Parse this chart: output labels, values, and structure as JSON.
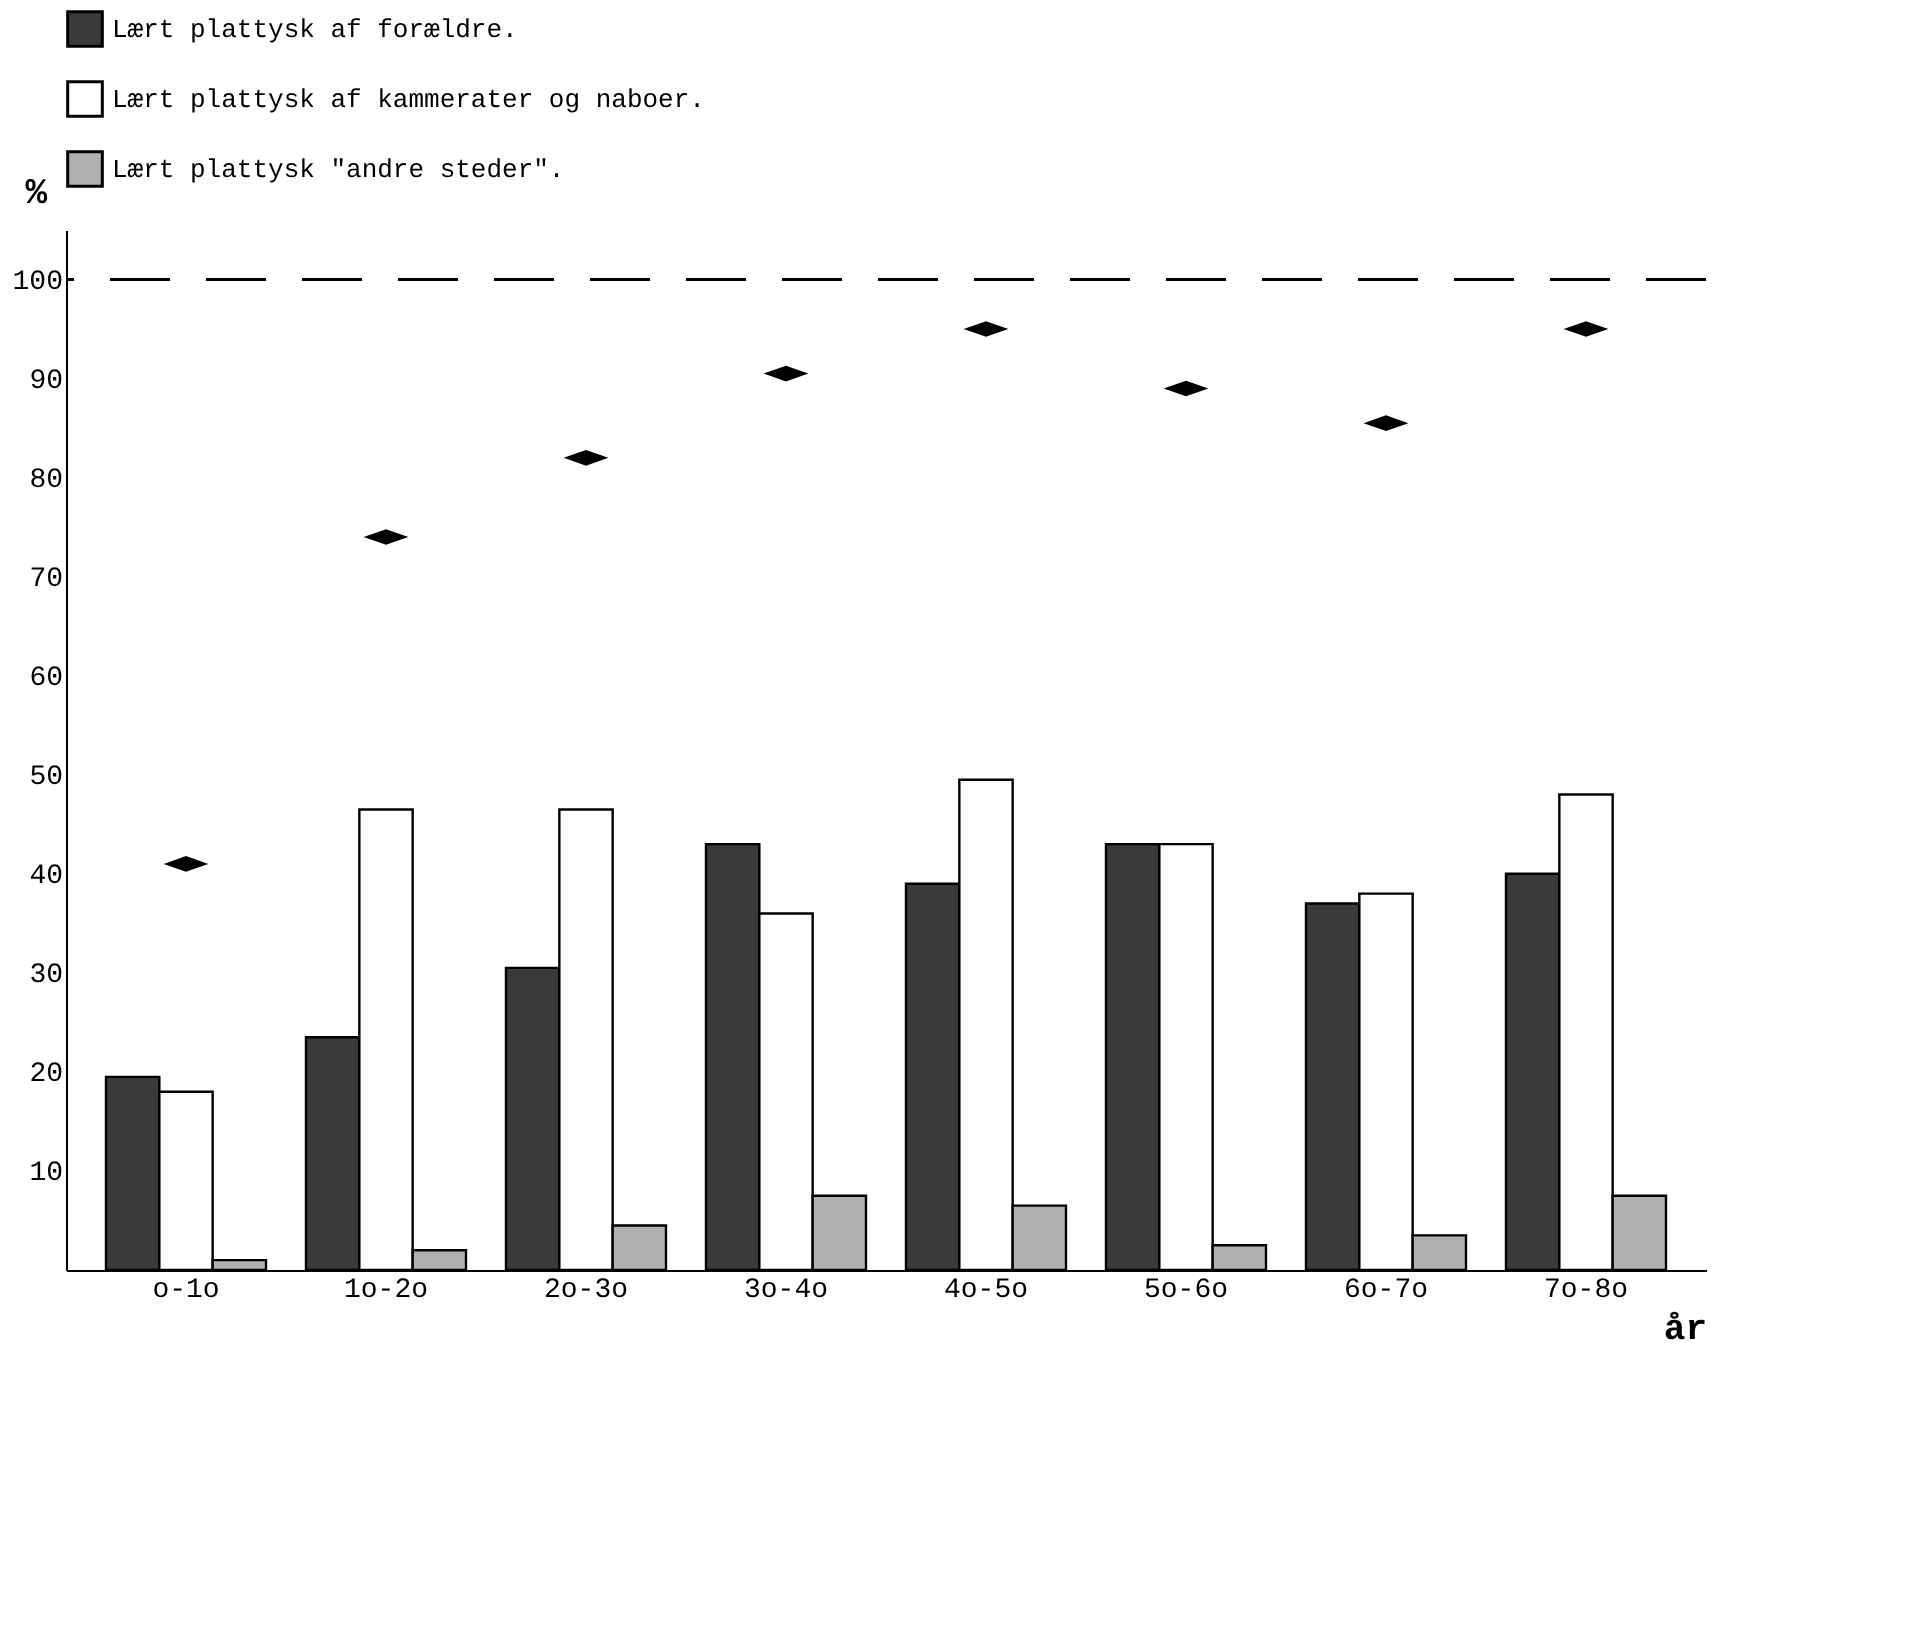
{
  "chart_data": {
    "type": "bar",
    "xlabel": "år",
    "ylabel": "%",
    "categories": [
      "o-1o",
      "1o-2o",
      "2o-3o",
      "3o-4o",
      "4o-5o",
      "5o-6o",
      "6o-7o",
      "7o-8o"
    ],
    "series": [
      {
        "name": "Lært plattysk af forældre.",
        "color": "#3a3a3a",
        "values": [
          19.5,
          23.5,
          30.5,
          43,
          39,
          43,
          37,
          40
        ]
      },
      {
        "name": "Lært plattysk af kammerater og naboer.",
        "color": "#ffffff",
        "values": [
          18,
          46.5,
          46.5,
          36,
          49.5,
          43,
          38,
          48
        ]
      },
      {
        "name": "Lært plattysk \"andre steder\".",
        "color": "#b0b0b0",
        "values": [
          1,
          2,
          4.5,
          7.5,
          6.5,
          2.5,
          3.5,
          7.5
        ]
      },
      {
        "type": "scatter",
        "marker": "diamond",
        "color": "#000000",
        "values": [
          41,
          74,
          82,
          90.5,
          95,
          89,
          85.5,
          95
        ]
      }
    ],
    "ref_lines": [
      {
        "axis": "y",
        "value": 100,
        "color": "#000000",
        "line_style": "dashed"
      }
    ],
    "ylim": [
      0,
      105
    ],
    "yticks": [
      10,
      20,
      30,
      40,
      50,
      60,
      70,
      80,
      90,
      100
    ],
    "grid": false,
    "legend": "top left"
  }
}
